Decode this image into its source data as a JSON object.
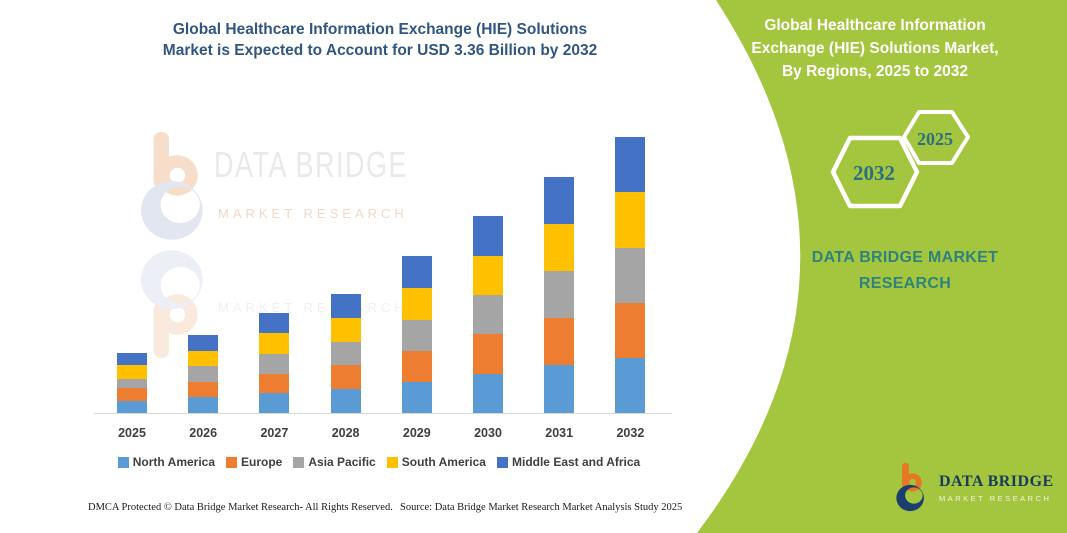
{
  "page": {
    "main_title": "Global Healthcare Information Exchange (HIE) Solutions\nMarket is Expected to Account for USD 3.36 Billion by 2032",
    "footer": {
      "dmca": "DMCA Protected © Data Bridge Market Research-  All Rights Reserved.",
      "source": "Source: Data Bridge Market Research  Market Analysis Study 2025"
    }
  },
  "watermark": {
    "line1": "DATA BRIDGE",
    "line2": "MARKET RESEARCH",
    "line2_reflection": "MARKET RESEARCH"
  },
  "side_panel": {
    "title": "Global Healthcare Information\nExchange (HIE) Solutions Market,\nBy Regions, 2025 to 2032",
    "hexagon_large_year": "2032",
    "hexagon_small_year": "2025",
    "brand_text": "DATA BRIDGE MARKET\nRESEARCH",
    "logo_name": "DATA BRIDGE",
    "logo_sub": "MARKET RESEARCH"
  },
  "colors": {
    "panel_green": "#A4C63E",
    "title_blue": "#31567F",
    "brand_teal": "#2F837D",
    "logo_orange": "#E87725",
    "logo_navy": "#1C3E6E"
  },
  "chart_data": {
    "type": "bar",
    "stacked": true,
    "title": "Global Healthcare Information Exchange (HIE) Solutions Market, By Regions, 2025 to 2032",
    "unit": "USD Billion",
    "categories": [
      "2025",
      "2026",
      "2027",
      "2028",
      "2029",
      "2030",
      "2031",
      "2032"
    ],
    "series": [
      {
        "name": "North America",
        "color": "#5B9BD5",
        "values": [
          0.15,
          0.19,
          0.24,
          0.29,
          0.38,
          0.48,
          0.58,
          0.67
        ]
      },
      {
        "name": "Europe",
        "color": "#ED7D31",
        "values": [
          0.15,
          0.19,
          0.24,
          0.29,
          0.38,
          0.48,
          0.58,
          0.67
        ]
      },
      {
        "name": "Asia Pacific",
        "color": "#A5A5A5",
        "values": [
          0.12,
          0.19,
          0.24,
          0.29,
          0.38,
          0.48,
          0.57,
          0.67
        ]
      },
      {
        "name": "South America",
        "color": "#FFC000",
        "values": [
          0.16,
          0.19,
          0.25,
          0.29,
          0.39,
          0.48,
          0.58,
          0.68
        ]
      },
      {
        "name": "Middle East and Africa",
        "color": "#4472C4",
        "values": [
          0.15,
          0.19,
          0.25,
          0.29,
          0.39,
          0.48,
          0.57,
          0.67
        ]
      }
    ],
    "totals": [
      0.73,
      0.95,
      1.22,
      1.45,
      1.92,
      2.4,
      2.88,
      3.36
    ],
    "ylim": [
      0,
      3.5
    ],
    "grid": false,
    "y_axis_visible": false,
    "legend_position": "bottom"
  }
}
